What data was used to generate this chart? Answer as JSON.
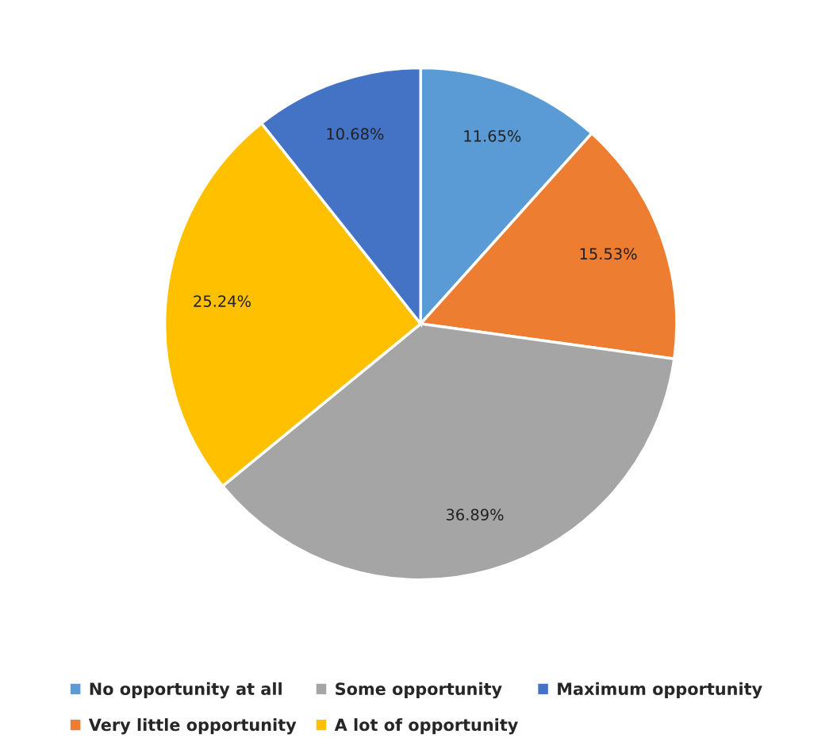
{
  "chart_data": {
    "type": "pie",
    "categories": [
      "No opportunity at all",
      "Very little opportunity",
      "Some opportunity",
      "A lot of opportunity",
      "Maximum opportunity"
    ],
    "values": [
      11.65,
      15.53,
      36.89,
      25.24,
      10.68
    ],
    "value_labels": [
      "11.65%",
      "15.53%",
      "36.89%",
      "25.24%",
      "10.68%"
    ],
    "colors": [
      "#5b9bd5",
      "#ed7d31",
      "#a5a5a5",
      "#ffc000",
      "#4472c4"
    ],
    "legend": "bottom"
  }
}
